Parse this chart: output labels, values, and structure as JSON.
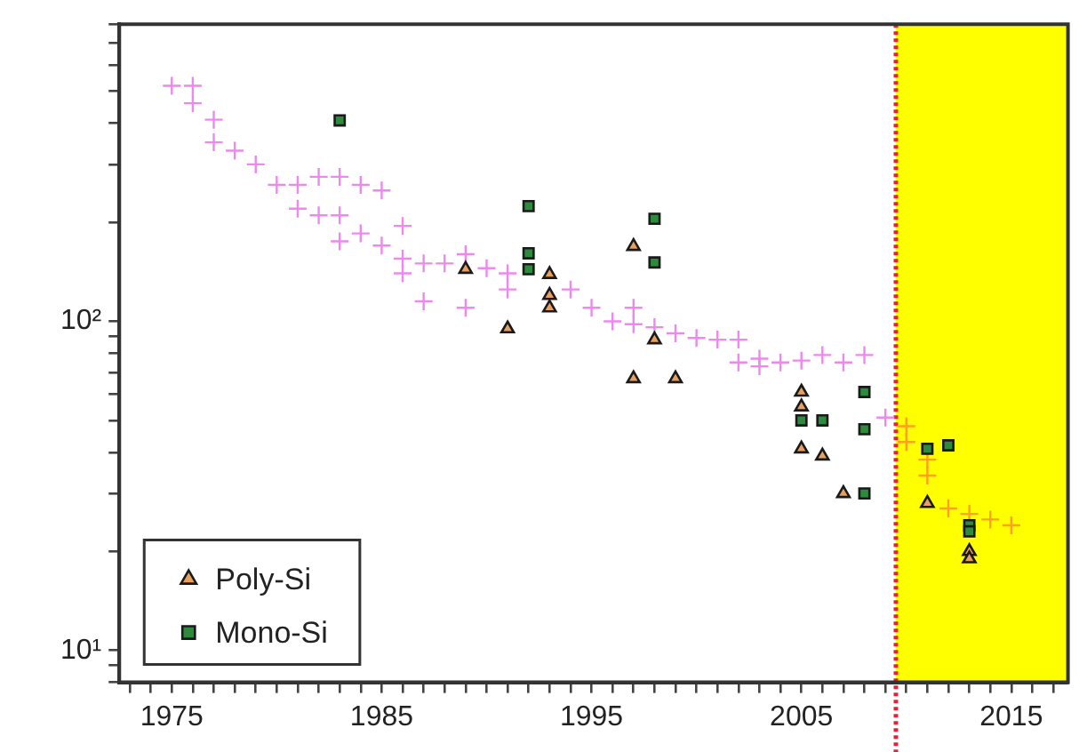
{
  "chart_data": {
    "type": "scatter",
    "log": "y",
    "grid": false,
    "legend": "bottom left",
    "xlim": [
      1972.5,
      2017.7
    ],
    "ylim": [
      8,
      800
    ],
    "xticks": [
      {
        "value": 1973,
        "label": null
      },
      {
        "value": 1974,
        "label": null
      },
      1975,
      {
        "value": 1976,
        "label": null
      },
      {
        "value": 1977,
        "label": null
      },
      {
        "value": 1978,
        "label": null
      },
      {
        "value": 1979,
        "label": null
      },
      {
        "value": 1980,
        "label": null
      },
      {
        "value": 1981,
        "label": null
      },
      {
        "value": 1982,
        "label": null
      },
      {
        "value": 1983,
        "label": null
      },
      {
        "value": 1984,
        "label": null
      },
      1985,
      {
        "value": 1986,
        "label": null
      },
      {
        "value": 1987,
        "label": null
      },
      {
        "value": 1988,
        "label": null
      },
      {
        "value": 1989,
        "label": null
      },
      {
        "value": 1990,
        "label": null
      },
      {
        "value": 1991,
        "label": null
      },
      {
        "value": 1992,
        "label": null
      },
      {
        "value": 1993,
        "label": null
      },
      {
        "value": 1994,
        "label": null
      },
      1995,
      {
        "value": 1996,
        "label": null
      },
      {
        "value": 1997,
        "label": null
      },
      {
        "value": 1998,
        "label": null
      },
      {
        "value": 1999,
        "label": null
      },
      {
        "value": 2000,
        "label": null
      },
      {
        "value": 2001,
        "label": null
      },
      {
        "value": 2002,
        "label": null
      },
      {
        "value": 2003,
        "label": null
      },
      {
        "value": 2004,
        "label": null
      },
      2005,
      {
        "value": 2006,
        "label": null
      },
      {
        "value": 2007,
        "label": null
      },
      {
        "value": 2008,
        "label": null
      },
      {
        "value": 2009,
        "label": null
      },
      {
        "value": 2010,
        "label": null
      },
      {
        "value": 2011,
        "label": null
      },
      {
        "value": 2012,
        "label": null
      },
      {
        "value": 2013,
        "label": null
      },
      {
        "value": 2014,
        "label": null
      },
      2015,
      {
        "value": 2016,
        "label": null
      },
      {
        "value": 2017,
        "label": null
      }
    ],
    "yticks": [
      {
        "value": 8,
        "label": null
      },
      {
        "value": 9,
        "label": null
      },
      {
        "value": 10,
        "label": "10¹"
      },
      {
        "value": 20,
        "label": null
      },
      {
        "value": 30,
        "label": null
      },
      {
        "value": 40,
        "label": null
      },
      {
        "value": 50,
        "label": null
      },
      {
        "value": 60,
        "label": null
      },
      {
        "value": 70,
        "label": null
      },
      {
        "value": 80,
        "label": null
      },
      {
        "value": 90,
        "label": null
      },
      {
        "value": 100,
        "label": "10²"
      },
      {
        "value": 200,
        "label": null
      },
      {
        "value": 300,
        "label": null
      },
      {
        "value": 400,
        "label": null
      },
      {
        "value": 500,
        "label": null
      },
      {
        "value": 600,
        "label": null
      },
      {
        "value": 700,
        "label": null
      },
      {
        "value": 800,
        "label": null
      }
    ],
    "ref_lines": [
      {
        "axis": "x",
        "value": 2009.5,
        "color": "#e8203c",
        "line_style": "dotted"
      }
    ],
    "bands": [
      {
        "axis": "x",
        "from": 2009.5,
        "to": 2017.7,
        "color": "#ffff00"
      }
    ],
    "series": [
      {
        "marker": "cross",
        "color": "#ee88ee",
        "x": [
          1975,
          1976,
          1976,
          1977,
          1977,
          1978,
          1979,
          1980,
          1981,
          1981,
          1982,
          1982,
          1983,
          1983,
          1983,
          1984,
          1984,
          1985,
          1985,
          1986,
          1986,
          1986,
          1987,
          1987,
          1988,
          1989,
          1989,
          1990,
          1991,
          1991,
          1992,
          1993,
          1994,
          1995,
          1996,
          1997,
          1997,
          1998,
          1999,
          2000,
          2001,
          2002,
          2002,
          2003,
          2003,
          2004,
          2005,
          2006,
          2007,
          2008,
          2009
        ],
        "values": [
          520,
          520,
          460,
          410,
          350,
          330,
          300,
          260,
          260,
          220,
          275,
          210,
          275,
          210,
          175,
          260,
          185,
          250,
          170,
          195,
          155,
          140,
          150,
          115,
          150,
          160,
          110,
          145,
          140,
          125,
          null,
          null,
          125,
          110,
          100,
          110,
          98,
          96,
          92,
          89,
          88,
          88,
          75,
          77,
          73,
          75,
          76,
          79,
          75,
          79,
          51
        ]
      },
      {
        "marker": "cross",
        "color": "#ffa020",
        "x": [
          2010,
          2010,
          2011,
          2011,
          2012,
          2013,
          2014,
          2015
        ],
        "values": [
          48,
          43,
          38,
          34,
          27,
          26,
          25,
          24
        ]
      },
      {
        "name": "Poly-Si",
        "marker": "triangle",
        "color": "#e8a060",
        "x": [
          1989,
          1991,
          1993,
          1993,
          1993,
          1997,
          1997,
          1998,
          1999,
          2005,
          2005,
          2005,
          2006,
          2007,
          2011,
          2013,
          2013
        ],
        "values": [
          144,
          95,
          139,
          120,
          110,
          169,
          67,
          88,
          67,
          61,
          55,
          41,
          39,
          30,
          28,
          20,
          19
        ]
      },
      {
        "name": "Mono-Si",
        "marker": "square",
        "color": "#2e8b3e",
        "x": [
          1983,
          1992,
          1992,
          1992,
          1998,
          1998,
          2005,
          2006,
          2008,
          2008,
          2008,
          2011,
          2012,
          2013,
          2013
        ],
        "values": [
          408,
          224,
          161,
          144,
          205,
          151,
          50,
          50,
          61,
          47,
          30,
          41,
          42,
          24,
          23
        ]
      }
    ]
  }
}
